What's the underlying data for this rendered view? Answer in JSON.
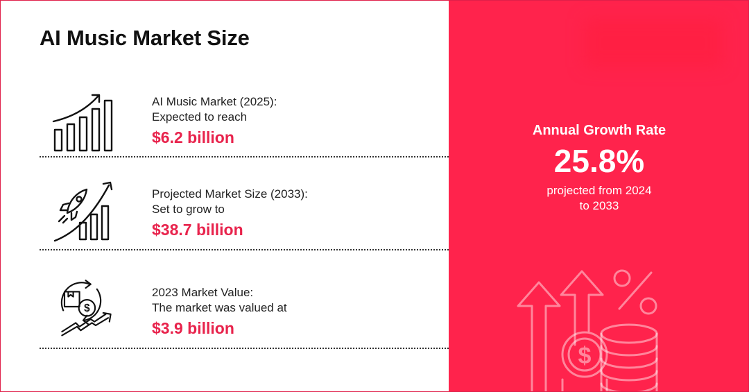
{
  "page": {
    "title": "AI Music Market Size"
  },
  "stats": [
    {
      "label": "AI Music Market (2025):",
      "subtext": "Expected to reach",
      "value": "$6.2 billion",
      "icon": "growth-bar-chart-icon"
    },
    {
      "label": "Projected Market Size (2033):",
      "subtext": "Set to grow to",
      "value": "$38.7 billion",
      "icon": "rocket-growth-icon"
    },
    {
      "label": "2023 Market Value:",
      "subtext": "The market was valued at",
      "value": "$3.9 billion",
      "icon": "money-cycle-icon"
    }
  ],
  "growth": {
    "heading": "Annual Growth Rate",
    "rate": "25.8%",
    "note_line1": "projected from 2024",
    "note_line2": "to 2033"
  },
  "colors": {
    "accent": "#e8234c",
    "panel": "#ff234c",
    "text": "#111111"
  }
}
